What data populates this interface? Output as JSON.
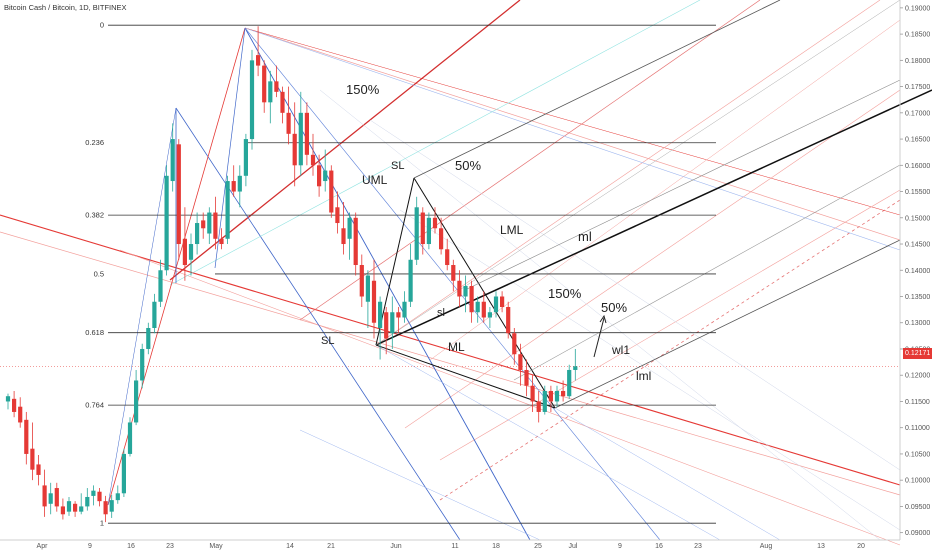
{
  "header": {
    "title": "Bitcoin Cash / Bitcoin, 1D, BITFINEX"
  },
  "price": {
    "current_label": "0.12171",
    "current_value": 0.12171
  },
  "colors": {
    "up": "#26a69a",
    "down": "#e53935",
    "fork_red": "#e53935",
    "fork_blue": "#3f66c9",
    "fib": "#333333",
    "current": "#e53935"
  },
  "chart_data": {
    "type": "candlestick",
    "title": "Bitcoin Cash / Bitcoin, 1D, BITFINEX",
    "ylim": [
      0.0886,
      0.1915
    ],
    "y_ticks": [
      "0.19000",
      "0.18500",
      "0.18000",
      "0.17500",
      "0.17000",
      "0.16500",
      "0.16000",
      "0.15500",
      "0.15000",
      "0.14500",
      "0.14000",
      "0.13500",
      "0.13000",
      "0.12500",
      "0.12000",
      "0.11500",
      "0.11000",
      "0.10500",
      "0.10000",
      "0.09500",
      "0.09000"
    ],
    "x_labels": [
      "Apr",
      "9",
      "16",
      "23",
      "May",
      "14",
      "21",
      "Jun",
      "11",
      "18",
      "25",
      "Jul",
      "9",
      "16",
      "23",
      "Aug",
      "13",
      "20"
    ],
    "fib_levels": [
      {
        "label": "0",
        "price": 0.1867
      },
      {
        "label": "0.236",
        "price": 0.1643
      },
      {
        "label": "0.382",
        "price": 0.1505
      },
      {
        "label": "0.5",
        "price": 0.1393
      },
      {
        "label": "0.618",
        "price": 0.1281
      },
      {
        "label": "0.764",
        "price": 0.1143
      },
      {
        "label": "1",
        "price": 0.0918
      }
    ],
    "annotations": [
      "150%",
      "SL",
      "50%",
      "UML",
      "LML",
      "ml",
      "sl",
      "150%",
      "50%",
      "SL",
      "ML",
      "wl1",
      "lml"
    ],
    "candles": [
      [
        0.115,
        0.1165,
        0.1135,
        0.116
      ],
      [
        0.1155,
        0.117,
        0.112,
        0.113
      ],
      [
        0.114,
        0.1158,
        0.11,
        0.111
      ],
      [
        0.1115,
        0.113,
        0.103,
        0.105
      ],
      [
        0.106,
        0.111,
        0.1,
        0.102
      ],
      [
        0.103,
        0.1048,
        0.099,
        0.101
      ],
      [
        0.099,
        0.102,
        0.093,
        0.095
      ],
      [
        0.0955,
        0.0995,
        0.0935,
        0.0975
      ],
      [
        0.0985,
        0.0995,
        0.094,
        0.095
      ],
      [
        0.095,
        0.0965,
        0.0925,
        0.0935
      ],
      [
        0.094,
        0.0968,
        0.0932,
        0.096
      ],
      [
        0.0955,
        0.096,
        0.093,
        0.094
      ],
      [
        0.094,
        0.0975,
        0.0935,
        0.095
      ],
      [
        0.095,
        0.0985,
        0.0942,
        0.0968
      ],
      [
        0.097,
        0.099,
        0.0952,
        0.098
      ],
      [
        0.0978,
        0.0985,
        0.095,
        0.096
      ],
      [
        0.096,
        0.097,
        0.092,
        0.0935
      ],
      [
        0.094,
        0.0972,
        0.0928,
        0.0962
      ],
      [
        0.0962,
        0.099,
        0.0955,
        0.0975
      ],
      [
        0.0975,
        0.106,
        0.0968,
        0.105
      ],
      [
        0.105,
        0.112,
        0.1045,
        0.111
      ],
      [
        0.111,
        0.121,
        0.1105,
        0.119
      ],
      [
        0.119,
        0.126,
        0.1175,
        0.125
      ],
      [
        0.125,
        0.13,
        0.124,
        0.129
      ],
      [
        0.129,
        0.1355,
        0.128,
        0.134
      ],
      [
        0.134,
        0.142,
        0.133,
        0.14
      ],
      [
        0.14,
        0.16,
        0.139,
        0.158
      ],
      [
        0.157,
        0.168,
        0.155,
        0.165
      ],
      [
        0.164,
        0.165,
        0.142,
        0.145
      ],
      [
        0.146,
        0.152,
        0.138,
        0.141
      ],
      [
        0.142,
        0.147,
        0.139,
        0.145
      ],
      [
        0.145,
        0.151,
        0.143,
        0.149
      ],
      [
        0.1495,
        0.151,
        0.146,
        0.148
      ],
      [
        0.147,
        0.152,
        0.145,
        0.151
      ],
      [
        0.151,
        0.154,
        0.144,
        0.146
      ],
      [
        0.146,
        0.148,
        0.144,
        0.145
      ],
      [
        0.146,
        0.158,
        0.145,
        0.157
      ],
      [
        0.157,
        0.16,
        0.154,
        0.155
      ],
      [
        0.155,
        0.16,
        0.152,
        0.158
      ],
      [
        0.158,
        0.166,
        0.156,
        0.165
      ],
      [
        0.165,
        0.182,
        0.163,
        0.18
      ],
      [
        0.181,
        0.1865,
        0.177,
        0.179
      ],
      [
        0.179,
        0.18,
        0.17,
        0.172
      ],
      [
        0.172,
        0.178,
        0.168,
        0.176
      ],
      [
        0.176,
        0.179,
        0.173,
        0.174
      ],
      [
        0.174,
        0.175,
        0.168,
        0.17
      ],
      [
        0.17,
        0.175,
        0.164,
        0.166
      ],
      [
        0.166,
        0.172,
        0.156,
        0.16
      ],
      [
        0.16,
        0.174,
        0.158,
        0.17
      ],
      [
        0.17,
        0.172,
        0.16,
        0.162
      ],
      [
        0.162,
        0.166,
        0.158,
        0.16
      ],
      [
        0.16,
        0.162,
        0.154,
        0.156
      ],
      [
        0.157,
        0.163,
        0.155,
        0.159
      ],
      [
        0.159,
        0.16,
        0.15,
        0.151
      ],
      [
        0.152,
        0.155,
        0.147,
        0.149
      ],
      [
        0.148,
        0.153,
        0.143,
        0.145
      ],
      [
        0.146,
        0.151,
        0.142,
        0.15
      ],
      [
        0.15,
        0.151,
        0.139,
        0.141
      ],
      [
        0.141,
        0.143,
        0.133,
        0.135
      ],
      [
        0.134,
        0.14,
        0.129,
        0.139
      ],
      [
        0.138,
        0.142,
        0.127,
        0.13
      ],
      [
        0.129,
        0.135,
        0.123,
        0.134
      ],
      [
        0.132,
        0.133,
        0.124,
        0.127
      ],
      [
        0.128,
        0.135,
        0.125,
        0.132
      ],
      [
        0.132,
        0.133,
        0.128,
        0.131
      ],
      [
        0.131,
        0.136,
        0.13,
        0.134
      ],
      [
        0.134,
        0.145,
        0.133,
        0.142
      ],
      [
        0.142,
        0.154,
        0.141,
        0.152
      ],
      [
        0.151,
        0.152,
        0.143,
        0.145
      ],
      [
        0.145,
        0.151,
        0.144,
        0.15
      ],
      [
        0.15,
        0.152,
        0.147,
        0.148
      ],
      [
        0.148,
        0.15,
        0.143,
        0.144
      ],
      [
        0.144,
        0.146,
        0.14,
        0.141
      ],
      [
        0.141,
        0.142,
        0.136,
        0.138
      ],
      [
        0.138,
        0.14,
        0.133,
        0.135
      ],
      [
        0.135,
        0.139,
        0.132,
        0.137
      ],
      [
        0.137,
        0.138,
        0.13,
        0.132
      ],
      [
        0.132,
        0.135,
        0.13,
        0.134
      ],
      [
        0.134,
        0.136,
        0.13,
        0.131
      ],
      [
        0.131,
        0.133,
        0.129,
        0.132
      ],
      [
        0.132,
        0.136,
        0.131,
        0.135
      ],
      [
        0.135,
        0.136,
        0.132,
        0.133
      ],
      [
        0.133,
        0.134,
        0.127,
        0.128
      ],
      [
        0.128,
        0.129,
        0.122,
        0.124
      ],
      [
        0.124,
        0.126,
        0.118,
        0.121
      ],
      [
        0.121,
        0.123,
        0.116,
        0.118
      ],
      [
        0.118,
        0.12,
        0.113,
        0.115
      ],
      [
        0.115,
        0.117,
        0.111,
        0.113
      ],
      [
        0.113,
        0.118,
        0.1125,
        0.117
      ],
      [
        0.117,
        0.118,
        0.113,
        0.115
      ],
      [
        0.115,
        0.118,
        0.114,
        0.117
      ],
      [
        0.117,
        0.119,
        0.115,
        0.116
      ],
      [
        0.116,
        0.122,
        0.1155,
        0.121
      ],
      [
        0.121,
        0.125,
        0.119,
        0.1217
      ]
    ]
  }
}
